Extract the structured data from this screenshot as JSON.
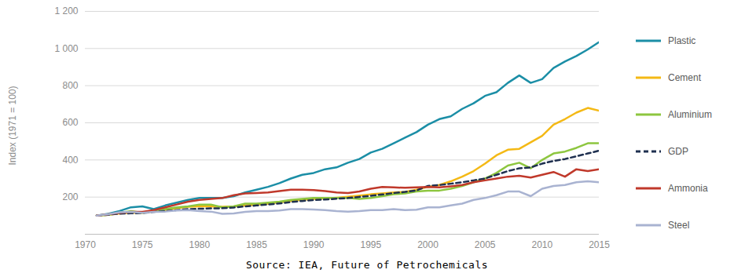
{
  "chart_data": {
    "type": "line",
    "y_label": "Index (1971 = 100)",
    "source": "Source: IEA, Future of Petrochemicals",
    "x": [
      1971,
      1972,
      1973,
      1974,
      1975,
      1976,
      1977,
      1978,
      1979,
      1980,
      1981,
      1982,
      1983,
      1984,
      1985,
      1986,
      1987,
      1988,
      1989,
      1990,
      1991,
      1992,
      1993,
      1994,
      1995,
      1996,
      1997,
      1998,
      1999,
      2000,
      2001,
      2002,
      2003,
      2004,
      2005,
      2006,
      2007,
      2008,
      2009,
      2010,
      2011,
      2012,
      2013,
      2014,
      2015
    ],
    "xlim": [
      1970,
      2015
    ],
    "xticks": [
      1970,
      1975,
      1980,
      1985,
      1990,
      1995,
      2000,
      2005,
      2010,
      2015
    ],
    "ylim": [
      0,
      1200
    ],
    "yticks": [
      200,
      400,
      600,
      800,
      {
        "value": 1000,
        "label": "1 000"
      },
      {
        "value": 1200,
        "label": "1 200"
      }
    ],
    "grid": true,
    "legend": "right",
    "series": [
      {
        "name": "Plastic",
        "color": "#1b8ea6",
        "line_style": "solid",
        "values": [
          100,
          110,
          125,
          145,
          150,
          135,
          155,
          170,
          185,
          195,
          195,
          195,
          205,
          225,
          240,
          255,
          275,
          300,
          320,
          330,
          350,
          360,
          385,
          405,
          440,
          460,
          490,
          520,
          550,
          590,
          620,
          635,
          675,
          705,
          745,
          765,
          815,
          855,
          815,
          835,
          895,
          930,
          960,
          995,
          1035
        ]
      },
      {
        "name": "Cement",
        "color": "#f4b915",
        "line_style": "solid",
        "values": [
          100,
          105,
          112,
          115,
          115,
          122,
          130,
          140,
          148,
          150,
          150,
          148,
          150,
          155,
          160,
          165,
          172,
          180,
          186,
          190,
          193,
          197,
          202,
          208,
          215,
          220,
          225,
          228,
          240,
          255,
          265,
          285,
          310,
          340,
          380,
          425,
          455,
          460,
          495,
          530,
          590,
          620,
          655,
          680,
          665
        ]
      },
      {
        "name": "Aluminium",
        "color": "#8dc63f",
        "line_style": "solid",
        "values": [
          100,
          105,
          115,
          125,
          115,
          125,
          135,
          145,
          150,
          160,
          160,
          145,
          150,
          165,
          165,
          170,
          175,
          185,
          190,
          195,
          195,
          195,
          195,
          190,
          195,
          205,
          215,
          220,
          230,
          235,
          235,
          245,
          260,
          280,
          300,
          330,
          370,
          385,
          355,
          400,
          435,
          445,
          465,
          490,
          490
        ]
      },
      {
        "name": "GDP",
        "color": "#1f3050",
        "line_style": "dashed",
        "values": [
          100,
          105,
          111,
          113,
          114,
          120,
          125,
          130,
          135,
          137,
          139,
          140,
          144,
          150,
          155,
          160,
          166,
          173,
          179,
          184,
          187,
          191,
          195,
          201,
          207,
          214,
          222,
          228,
          236,
          260,
          265,
          272,
          280,
          290,
          300,
          320,
          340,
          355,
          360,
          380,
          395,
          405,
          420,
          435,
          450
        ]
      },
      {
        "name": "Ammonia",
        "color": "#c0392b",
        "line_style": "solid",
        "values": [
          100,
          108,
          115,
          120,
          120,
          130,
          145,
          160,
          175,
          185,
          190,
          195,
          210,
          220,
          222,
          225,
          232,
          240,
          240,
          238,
          232,
          225,
          222,
          230,
          245,
          255,
          252,
          250,
          252,
          255,
          252,
          258,
          265,
          280,
          290,
          300,
          310,
          315,
          305,
          320,
          335,
          310,
          350,
          340,
          350
        ]
      },
      {
        "name": "Steel",
        "color": "#a9b3d1",
        "line_style": "solid",
        "values": [
          100,
          108,
          118,
          120,
          115,
          120,
          122,
          128,
          130,
          125,
          122,
          110,
          112,
          120,
          125,
          125,
          128,
          135,
          135,
          133,
          130,
          125,
          122,
          125,
          130,
          130,
          135,
          130,
          132,
          145,
          145,
          155,
          165,
          185,
          195,
          210,
          230,
          230,
          205,
          245,
          260,
          265,
          280,
          285,
          280
        ]
      }
    ]
  }
}
